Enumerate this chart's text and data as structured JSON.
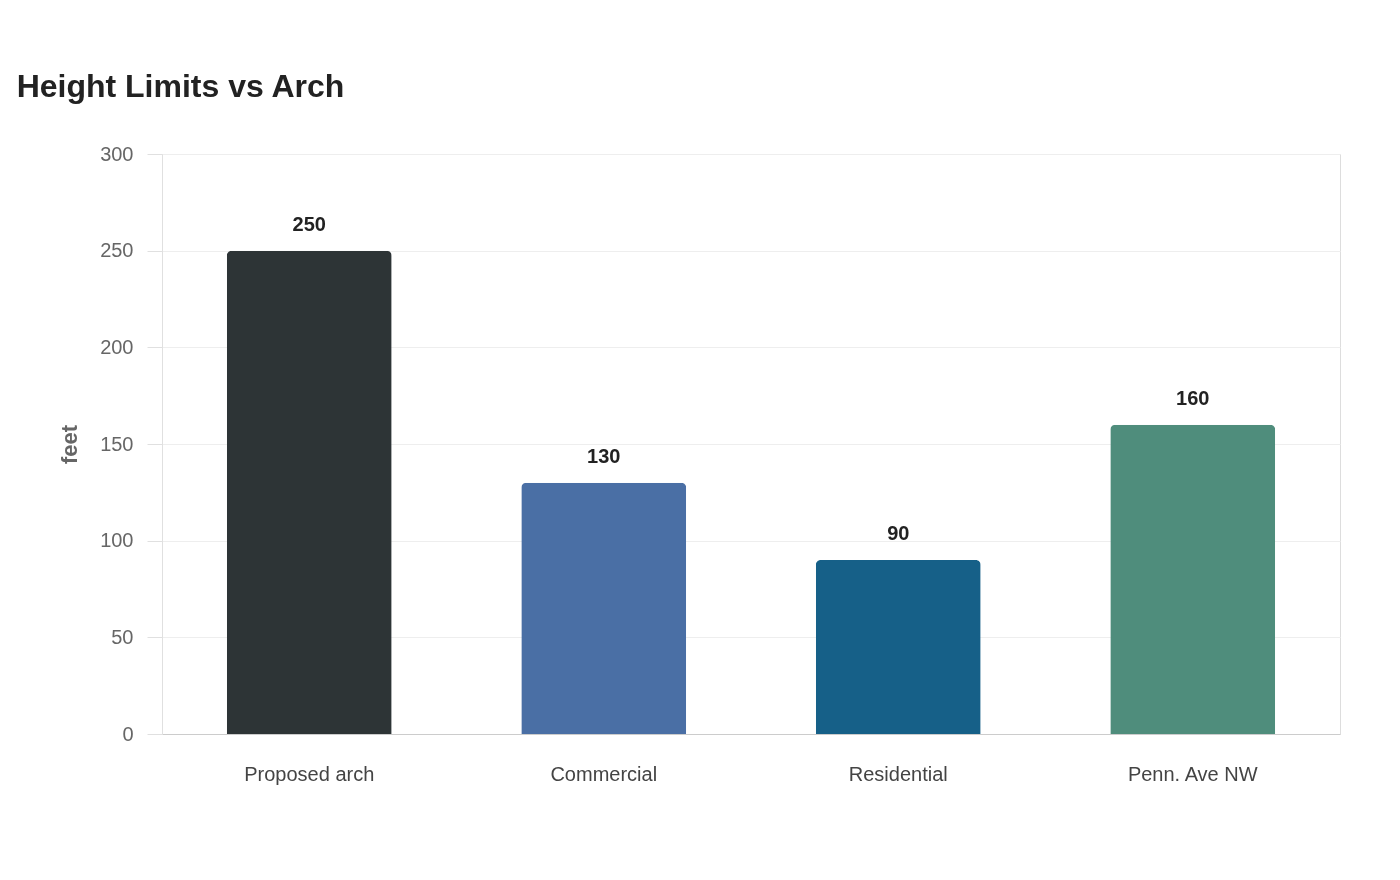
{
  "chart_data": {
    "type": "bar",
    "title": "Height Limits vs Arch",
    "ylabel": "feet",
    "categories": [
      "Proposed arch",
      "Commercial",
      "Residential",
      "Penn. Ave NW"
    ],
    "values": [
      250,
      130,
      90,
      160
    ],
    "colors": [
      "#2d3436",
      "#4a6fa5",
      "#166088",
      "#4f8d7c"
    ],
    "ylim": [
      0,
      300
    ],
    "yticks": [
      0,
      50,
      100,
      150,
      200,
      250,
      300
    ],
    "grid": "y",
    "data_labels": true,
    "legend": false
  }
}
